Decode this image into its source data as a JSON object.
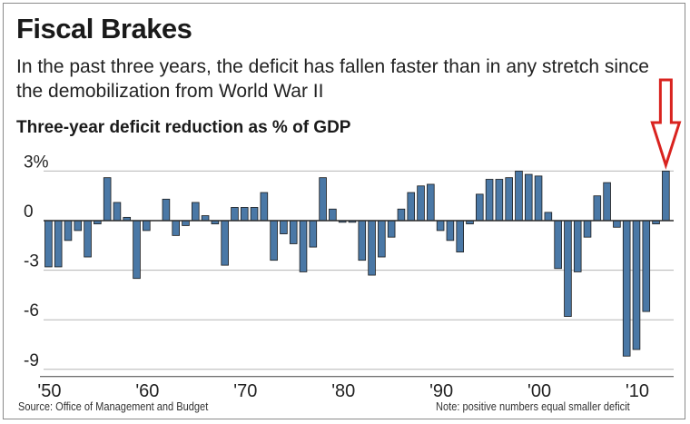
{
  "header": {
    "title": "Fiscal Brakes",
    "subtitle": "In the past three years, the deficit has fallen faster than in any stretch since the demobilization from World War II",
    "chart_title": "Three-year deficit reduction as % of GDP"
  },
  "footer": {
    "source": "Source: Office of Management and Budget",
    "note": "Note: positive numbers equal smaller deficit"
  },
  "colors": {
    "bar": "#4a78a6",
    "bar_edge": "#1c1c1c",
    "arrow": "#d9231f",
    "grid": "#b5b5b5",
    "zero_line": "#2a2a2a"
  },
  "annotation": {
    "icon": "down-arrow-icon",
    "target_year": 2013
  },
  "chart_data": {
    "type": "bar",
    "title": "Three-year deficit reduction as % of GDP",
    "xlabel": "",
    "ylabel": "",
    "ylim": [
      -9,
      3
    ],
    "y_ticks": [
      3,
      0,
      -3,
      -6,
      -9
    ],
    "y_tick_labels": [
      "3%",
      "0",
      "-3",
      "-6",
      "-9"
    ],
    "x_ticks": [
      1950,
      1960,
      1970,
      1980,
      1990,
      2000,
      2010
    ],
    "x_tick_labels": [
      "'50",
      "'60",
      "'70",
      "'80",
      "'90",
      "'00",
      "'10"
    ],
    "grid": true,
    "categories": [
      1950,
      1951,
      1952,
      1953,
      1954,
      1955,
      1956,
      1957,
      1958,
      1959,
      1960,
      1961,
      1962,
      1963,
      1964,
      1965,
      1966,
      1967,
      1968,
      1969,
      1970,
      1971,
      1972,
      1973,
      1974,
      1975,
      1976,
      1977,
      1978,
      1979,
      1980,
      1981,
      1982,
      1983,
      1984,
      1985,
      1986,
      1987,
      1988,
      1989,
      1990,
      1991,
      1992,
      1993,
      1994,
      1995,
      1996,
      1997,
      1998,
      1999,
      2000,
      2001,
      2002,
      2003,
      2004,
      2005,
      2006,
      2007,
      2008,
      2009,
      2010,
      2011,
      2012,
      2013
    ],
    "values": [
      -2.8,
      -2.8,
      -1.2,
      -0.6,
      -2.2,
      -0.2,
      2.6,
      1.1,
      0.2,
      -3.5,
      -0.6,
      0.0,
      1.3,
      -0.9,
      -0.3,
      1.1,
      0.3,
      -0.2,
      -2.7,
      0.8,
      0.8,
      0.8,
      1.7,
      -2.4,
      -0.8,
      -1.4,
      -3.1,
      -1.6,
      2.6,
      0.7,
      -0.1,
      -0.1,
      -2.4,
      -3.3,
      -2.2,
      -1.0,
      0.7,
      1.7,
      2.1,
      2.2,
      -0.6,
      -1.2,
      -1.9,
      -0.2,
      1.6,
      2.5,
      2.5,
      2.6,
      3.0,
      2.8,
      2.7,
      0.5,
      -2.9,
      -5.8,
      -3.1,
      -1.0,
      1.5,
      2.3,
      -0.4,
      -8.2,
      -7.8,
      -5.5,
      -0.2,
      3.0
    ]
  }
}
